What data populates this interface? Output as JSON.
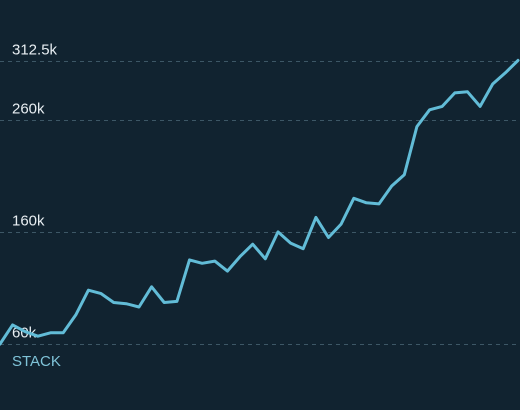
{
  "chart_data": {
    "type": "line",
    "series_label": "STACK",
    "y_ticks": [
      60000,
      160000,
      260000,
      312500
    ],
    "y_tick_labels": [
      "60k",
      "160k",
      "260k",
      "312.5k"
    ],
    "ylim": [
      60000,
      312500
    ],
    "grid": true,
    "colors": {
      "background": "#112330",
      "line": "#62bcd7",
      "grid": "#3d5766",
      "tick_text": "#e8eef2",
      "series_label": "#7fc3d8"
    },
    "values": [
      60000,
      77000,
      71000,
      67000,
      70000,
      70000,
      86000,
      108000,
      105000,
      97000,
      96000,
      93000,
      111000,
      97000,
      98000,
      135000,
      132000,
      134000,
      125000,
      138000,
      149000,
      136000,
      160000,
      150000,
      145000,
      173000,
      155000,
      167000,
      190000,
      186000,
      185000,
      201000,
      211000,
      254000,
      269000,
      272000,
      284000,
      285000,
      272000,
      292000,
      302000,
      313000
    ]
  }
}
